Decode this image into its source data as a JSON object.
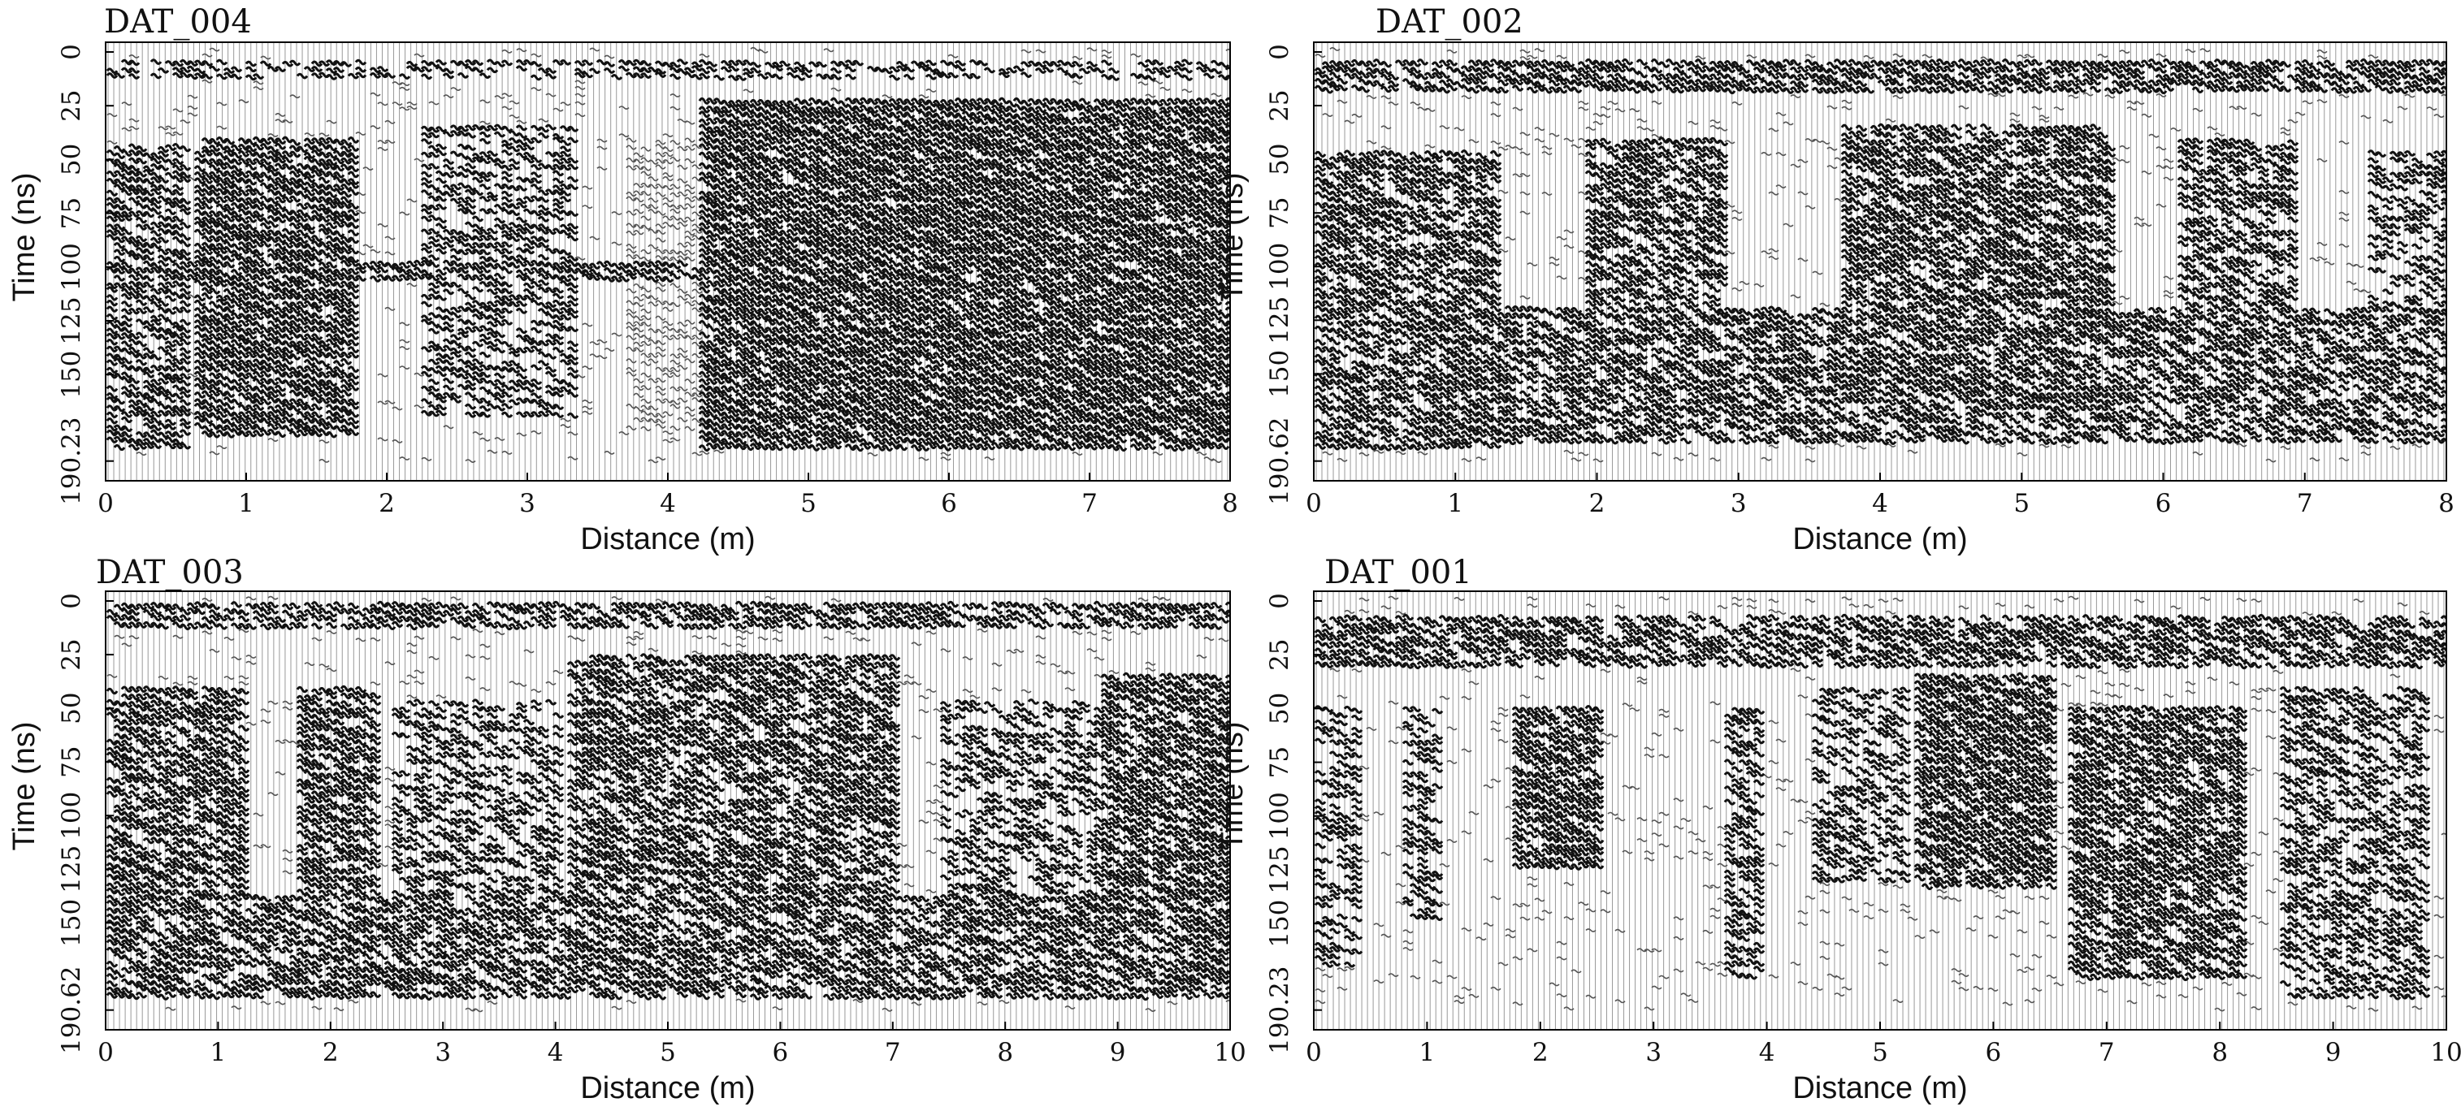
{
  "chart_data": [
    {
      "type": "heatmap",
      "title": "DAT_004",
      "xlabel": "Distance (m)",
      "ylabel": "Time (ns)",
      "x_ticks": [
        "0",
        "1",
        "2",
        "3",
        "4",
        "5",
        "6",
        "7",
        "8"
      ],
      "y_ticks": [
        "0",
        "25",
        "50",
        "75",
        "100",
        "125",
        "150",
        "190.23"
      ],
      "xlim": [
        0,
        8
      ],
      "ylim": [
        0,
        190.23
      ],
      "y_tick_values": [
        0,
        25,
        50,
        75,
        100,
        125,
        150,
        190.23
      ],
      "reflection_zones": [
        {
          "x": [
            0,
            8
          ],
          "t": [
            3,
            14
          ],
          "strength": 0.55
        },
        {
          "x": [
            0,
            0.55
          ],
          "t": [
            42,
            185
          ],
          "strength": 0.75
        },
        {
          "x": [
            0.6,
            1.75
          ],
          "t": [
            40,
            180
          ],
          "strength": 0.9
        },
        {
          "x": [
            2.2,
            3.3
          ],
          "t": [
            35,
            170
          ],
          "strength": 0.6
        },
        {
          "x": [
            3.7,
            4.3
          ],
          "t": [
            40,
            175
          ],
          "strength": 0.5
        },
        {
          "x": [
            4.2,
            8
          ],
          "t": [
            22,
            185
          ],
          "strength": 0.95
        },
        {
          "x": [
            0,
            4.2
          ],
          "t": [
            96,
            106
          ],
          "strength": 0.8
        }
      ]
    },
    {
      "type": "heatmap",
      "title": "DAT_002",
      "xlabel": "Distance (m)",
      "ylabel": "Time (ns)",
      "x_ticks": [
        "0",
        "1",
        "2",
        "3",
        "4",
        "5",
        "6",
        "7",
        "8"
      ],
      "y_ticks": [
        "0",
        "25",
        "50",
        "75",
        "100",
        "125",
        "150",
        "190.62"
      ],
      "xlim": [
        0,
        8
      ],
      "ylim": [
        0,
        190.62
      ],
      "y_tick_values": [
        0,
        25,
        50,
        75,
        100,
        125,
        150,
        190.62
      ],
      "reflection_zones": [
        {
          "x": [
            0,
            8
          ],
          "t": [
            3,
            18
          ],
          "strength": 0.85
        },
        {
          "x": [
            0,
            1.3
          ],
          "t": [
            45,
            185
          ],
          "strength": 0.8
        },
        {
          "x": [
            1.9,
            2.9
          ],
          "t": [
            40,
            160
          ],
          "strength": 0.8
        },
        {
          "x": [
            3.7,
            5.6
          ],
          "t": [
            35,
            165
          ],
          "strength": 0.85
        },
        {
          "x": [
            6.1,
            6.9
          ],
          "t": [
            40,
            165
          ],
          "strength": 0.7
        },
        {
          "x": [
            7.4,
            8
          ],
          "t": [
            45,
            180
          ],
          "strength": 0.6
        },
        {
          "x": [
            0,
            8
          ],
          "t": [
            118,
            182
          ],
          "strength": 0.75
        }
      ]
    },
    {
      "type": "heatmap",
      "title": "DAT_003",
      "xlabel": "Distance (m)",
      "ylabel": "Time (ns)",
      "x_ticks": [
        "0",
        "1",
        "2",
        "3",
        "4",
        "5",
        "6",
        "7",
        "8",
        "9",
        "10"
      ],
      "y_ticks": [
        "0",
        "25",
        "50",
        "75",
        "100",
        "125",
        "150",
        "190.62"
      ],
      "xlim": [
        0,
        10
      ],
      "ylim": [
        0,
        190.62
      ],
      "y_tick_values": [
        0,
        25,
        50,
        75,
        100,
        125,
        150,
        190.62
      ],
      "reflection_zones": [
        {
          "x": [
            0,
            10
          ],
          "t": [
            2,
            12
          ],
          "strength": 0.8
        },
        {
          "x": [
            0,
            1.2
          ],
          "t": [
            40,
            185
          ],
          "strength": 0.8
        },
        {
          "x": [
            1.7,
            2.4
          ],
          "t": [
            40,
            185
          ],
          "strength": 0.85
        },
        {
          "x": [
            2.5,
            4.0
          ],
          "t": [
            45,
            175
          ],
          "strength": 0.6
        },
        {
          "x": [
            4.1,
            7.0
          ],
          "t": [
            25,
            185
          ],
          "strength": 0.8
        },
        {
          "x": [
            7.4,
            8.8
          ],
          "t": [
            45,
            170
          ],
          "strength": 0.6
        },
        {
          "x": [
            8.8,
            10
          ],
          "t": [
            35,
            185
          ],
          "strength": 0.85
        },
        {
          "x": [
            0,
            10
          ],
          "t": [
            138,
            185
          ],
          "strength": 0.8
        }
      ]
    },
    {
      "type": "heatmap",
      "title": "DAT_001",
      "xlabel": "Distance (m)",
      "ylabel": "Time (ns)",
      "x_ticks": [
        "0",
        "1",
        "2",
        "3",
        "4",
        "5",
        "6",
        "7",
        "8",
        "9",
        "10"
      ],
      "y_ticks": [
        "0",
        "25",
        "50",
        "75",
        "100",
        "125",
        "150",
        "190.23"
      ],
      "xlim": [
        0,
        10
      ],
      "ylim": [
        0,
        190.23
      ],
      "y_tick_values": [
        0,
        25,
        50,
        75,
        100,
        125,
        150,
        190.23
      ],
      "reflection_zones": [
        {
          "x": [
            0,
            10
          ],
          "t": [
            8,
            32
          ],
          "strength": 0.8
        },
        {
          "x": [
            0,
            0.4
          ],
          "t": [
            50,
            170
          ],
          "strength": 0.55
        },
        {
          "x": [
            0.75,
            1.1
          ],
          "t": [
            50,
            150
          ],
          "strength": 0.6
        },
        {
          "x": [
            1.7,
            2.5
          ],
          "t": [
            50,
            125
          ],
          "strength": 0.9
        },
        {
          "x": [
            3.6,
            3.9
          ],
          "t": [
            50,
            175
          ],
          "strength": 0.7
        },
        {
          "x": [
            4.4,
            5.2
          ],
          "t": [
            40,
            130
          ],
          "strength": 0.6
        },
        {
          "x": [
            5.3,
            6.5
          ],
          "t": [
            35,
            135
          ],
          "strength": 0.9
        },
        {
          "x": [
            6.6,
            8.2
          ],
          "t": [
            50,
            175
          ],
          "strength": 0.85
        },
        {
          "x": [
            8.5,
            9.8
          ],
          "t": [
            40,
            185
          ],
          "strength": 0.65
        }
      ]
    }
  ]
}
